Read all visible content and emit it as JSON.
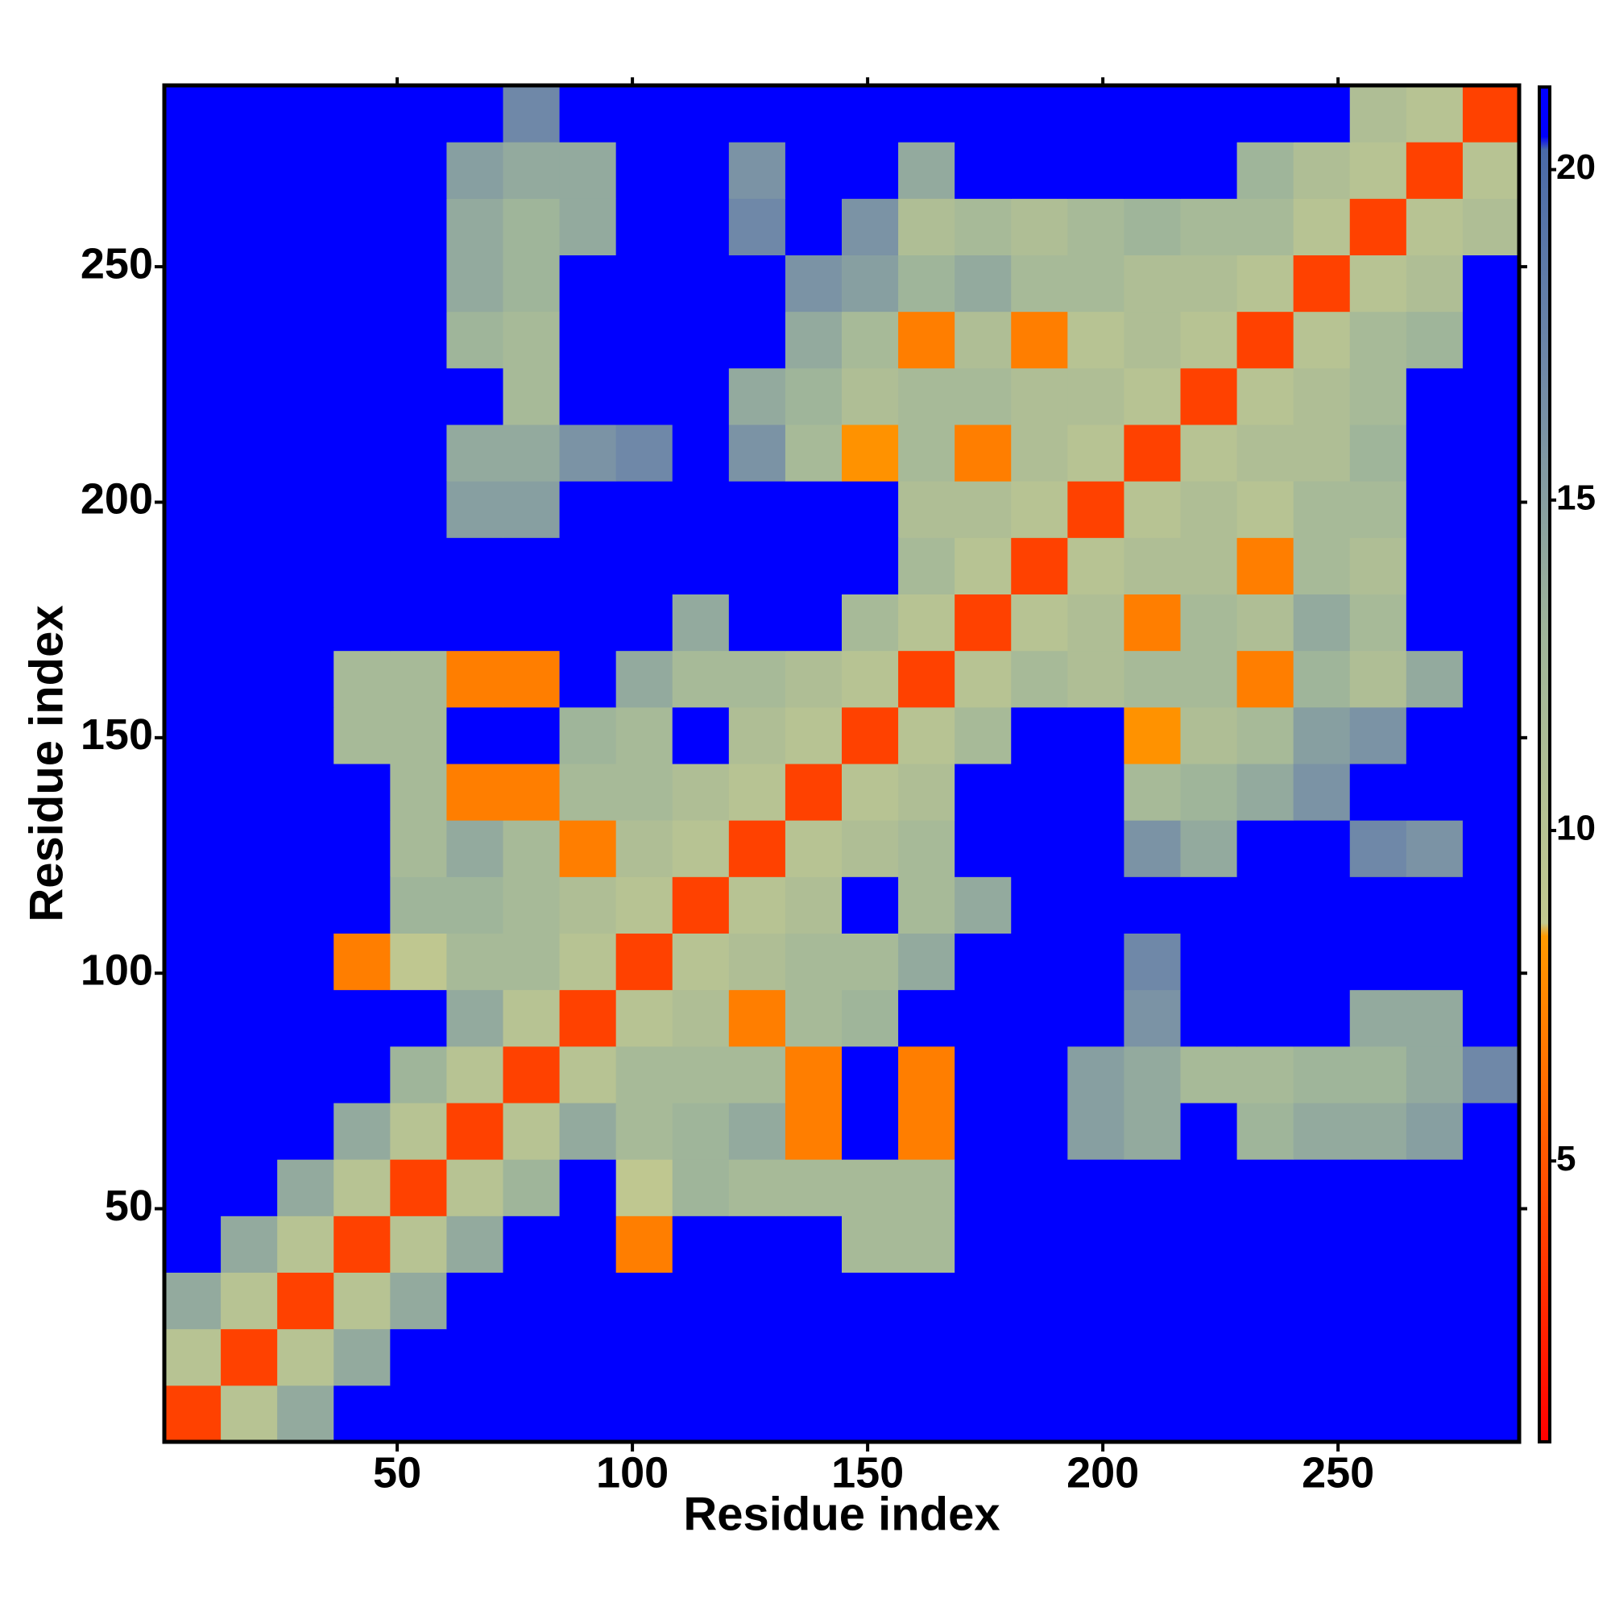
{
  "chart_data": {
    "type": "heatmap",
    "xlabel": "Residue index",
    "ylabel": "Residue index",
    "xlim": [
      0.5,
      288.5
    ],
    "ylim": [
      0.5,
      288.5
    ],
    "xticks": [
      50,
      100,
      150,
      200,
      250
    ],
    "yticks": [
      50,
      100,
      150,
      200,
      250
    ],
    "xbins": [
      0.5,
      12.5,
      24.5,
      36.5,
      48.5,
      60.5,
      72.5,
      84.5,
      96.5,
      108.5,
      120.5,
      132.5,
      144.5,
      156.5,
      168.5,
      180.5,
      192.5,
      204.5,
      216.5,
      228.5,
      240.5,
      252.5,
      264.5,
      276.5,
      288.5
    ],
    "ybins": [
      0.5,
      12.5,
      24.5,
      36.5,
      48.5,
      60.5,
      72.5,
      84.5,
      96.5,
      108.5,
      120.5,
      132.5,
      144.5,
      156.5,
      168.5,
      180.5,
      192.5,
      204.5,
      216.5,
      228.5,
      240.5,
      252.5,
      264.5,
      276.5,
      288.5
    ],
    "zlim": [
      0.75,
      21.25
    ],
    "zticks": [
      5,
      10,
      15,
      20
    ],
    "colorscale": [
      {
        "value": 0.75,
        "color": "#ff0000"
      },
      {
        "value": 8.4,
        "color": "#ff9a00"
      },
      {
        "value": 8.6,
        "color": "#c2c98f"
      },
      {
        "value": 13,
        "color": "#9fb59a"
      },
      {
        "value": 17,
        "color": "#6f88a8"
      },
      {
        "value": 20.3,
        "color": "#4a6aa8"
      },
      {
        "value": 20.5,
        "color": "#0000ff"
      },
      {
        "value": 21.25,
        "color": "#0000ff"
      }
    ],
    "z": [
      [
        4,
        10,
        14,
        21,
        21,
        21,
        21,
        21,
        21,
        21,
        21,
        21,
        21,
        21,
        21,
        21,
        21,
        21,
        21,
        21,
        21,
        21,
        21,
        21
      ],
      [
        10,
        4,
        10,
        14,
        21,
        21,
        21,
        21,
        21,
        21,
        21,
        21,
        21,
        21,
        21,
        21,
        21,
        21,
        21,
        21,
        21,
        21,
        21,
        21
      ],
      [
        14,
        10,
        4,
        10,
        14,
        21,
        21,
        21,
        21,
        21,
        21,
        21,
        21,
        21,
        21,
        21,
        21,
        21,
        21,
        21,
        21,
        21,
        21,
        21
      ],
      [
        21,
        14,
        10,
        4,
        10,
        14,
        21,
        21,
        7,
        21,
        21,
        21,
        12,
        12,
        21,
        21,
        21,
        21,
        21,
        21,
        21,
        21,
        21,
        21
      ],
      [
        21,
        21,
        14,
        10,
        4,
        10,
        13,
        21,
        9,
        13,
        12,
        12,
        12,
        12,
        21,
        21,
        21,
        21,
        21,
        21,
        21,
        21,
        21,
        21
      ],
      [
        21,
        21,
        21,
        14,
        10,
        4,
        10,
        14,
        12,
        13,
        14,
        7,
        21,
        7,
        21,
        21,
        15,
        14,
        21,
        13,
        14,
        14,
        15,
        21
      ],
      [
        21,
        21,
        21,
        21,
        13,
        10,
        4,
        10,
        12,
        12,
        12,
        7,
        21,
        7,
        21,
        21,
        15,
        14,
        12,
        12,
        13,
        13,
        14,
        17
      ],
      [
        21,
        21,
        21,
        21,
        21,
        14,
        10,
        4,
        10,
        11,
        7,
        12,
        13,
        21,
        21,
        21,
        21,
        16,
        21,
        21,
        21,
        14,
        14,
        21
      ],
      [
        21,
        21,
        21,
        7,
        9,
        12,
        12,
        10,
        4,
        10,
        11,
        12,
        12,
        14,
        21,
        21,
        21,
        17,
        21,
        21,
        21,
        21,
        21,
        21
      ],
      [
        21,
        21,
        21,
        21,
        13,
        13,
        12,
        11,
        10,
        4,
        10,
        11,
        21,
        12,
        14,
        21,
        21,
        21,
        21,
        21,
        21,
        21,
        21,
        21
      ],
      [
        21,
        21,
        21,
        21,
        12,
        14,
        12,
        7,
        11,
        10,
        4,
        10,
        11,
        12,
        21,
        21,
        21,
        16,
        14,
        21,
        21,
        17,
        16,
        21
      ],
      [
        21,
        21,
        21,
        21,
        12,
        7,
        7,
        12,
        12,
        11,
        10,
        4,
        10,
        11,
        21,
        21,
        21,
        12,
        13,
        14,
        16,
        21,
        21,
        21
      ],
      [
        21,
        21,
        21,
        12,
        12,
        21,
        21,
        13,
        12,
        21,
        11,
        10,
        4,
        10,
        12,
        21,
        21,
        8,
        11,
        12,
        15,
        16,
        21,
        21
      ],
      [
        21,
        21,
        21,
        12,
        12,
        7,
        7,
        21,
        14,
        12,
        12,
        11,
        10,
        4,
        10,
        12,
        11,
        12,
        12,
        7,
        13,
        11,
        14,
        21
      ],
      [
        21,
        21,
        21,
        21,
        21,
        21,
        21,
        21,
        21,
        14,
        21,
        21,
        12,
        10,
        4,
        10,
        11,
        7,
        12,
        11,
        14,
        12,
        21,
        21
      ],
      [
        21,
        21,
        21,
        21,
        21,
        21,
        21,
        21,
        21,
        21,
        21,
        21,
        21,
        12,
        10,
        4,
        10,
        11,
        11,
        7,
        12,
        11,
        21,
        21
      ],
      [
        21,
        21,
        21,
        21,
        21,
        15,
        15,
        21,
        21,
        21,
        21,
        21,
        21,
        11,
        11,
        10,
        4,
        10,
        11,
        10,
        12,
        12,
        21,
        21
      ],
      [
        21,
        21,
        21,
        21,
        21,
        14,
        14,
        16,
        17,
        21,
        16,
        12,
        8,
        12,
        7,
        11,
        10,
        4,
        10,
        11,
        11,
        13,
        21,
        21
      ],
      [
        21,
        21,
        21,
        21,
        21,
        21,
        12,
        21,
        21,
        21,
        14,
        13,
        11,
        12,
        12,
        11,
        11,
        10,
        4,
        10,
        11,
        12,
        21,
        21
      ],
      [
        21,
        21,
        21,
        21,
        21,
        13,
        12,
        21,
        21,
        21,
        21,
        14,
        12,
        7,
        11,
        7,
        10,
        11,
        10,
        4,
        10,
        12,
        13,
        21
      ],
      [
        21,
        21,
        21,
        21,
        21,
        14,
        13,
        21,
        21,
        21,
        21,
        16,
        15,
        13,
        14,
        12,
        12,
        11,
        11,
        10,
        4,
        10,
        11,
        21
      ],
      [
        21,
        21,
        21,
        21,
        21,
        14,
        13,
        14,
        21,
        21,
        17,
        21,
        16,
        11,
        12,
        11,
        12,
        13,
        12,
        12,
        10,
        4,
        10,
        11
      ],
      [
        21,
        21,
        21,
        21,
        21,
        15,
        14,
        14,
        21,
        21,
        16,
        21,
        21,
        14,
        21,
        21,
        21,
        21,
        21,
        13,
        11,
        10,
        4,
        10
      ],
      [
        21,
        21,
        21,
        21,
        21,
        21,
        17,
        21,
        21,
        21,
        21,
        21,
        21,
        21,
        21,
        21,
        21,
        21,
        21,
        21,
        21,
        11,
        10,
        4
      ]
    ]
  }
}
